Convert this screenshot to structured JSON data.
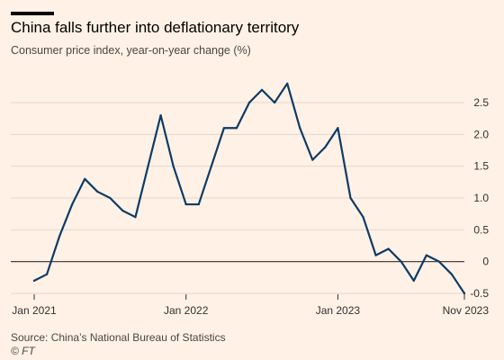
{
  "header": {
    "title": "China falls further into deflationary territory",
    "subtitle": "Consumer price index, year-on-year change (%)"
  },
  "footer": {
    "source": "Source: China’s National Bureau of Statistics",
    "credit": "© FT"
  },
  "colors": {
    "background": "#fff1e5",
    "line": "#0d3b66",
    "grid": "#e1d8cf",
    "zero_line": "#33302e",
    "text": "#33302e"
  },
  "chart_data": {
    "type": "line",
    "title": "China falls further into deflationary territory",
    "subtitle": "Consumer price index, year-on-year change (%)",
    "xlabel": "",
    "ylabel": "",
    "x": [
      "2021-01",
      "2021-02",
      "2021-03",
      "2021-04",
      "2021-05",
      "2021-06",
      "2021-07",
      "2021-08",
      "2021-09",
      "2021-10",
      "2021-11",
      "2021-12",
      "2022-01",
      "2022-02",
      "2022-03",
      "2022-04",
      "2022-05",
      "2022-06",
      "2022-07",
      "2022-08",
      "2022-09",
      "2022-10",
      "2022-11",
      "2022-12",
      "2023-01",
      "2023-02",
      "2023-03",
      "2023-04",
      "2023-05",
      "2023-06",
      "2023-07",
      "2023-08",
      "2023-09",
      "2023-10",
      "2023-11"
    ],
    "series": [
      {
        "values": [
          -0.3,
          -0.2,
          0.4,
          0.9,
          1.3,
          1.1,
          1.0,
          0.8,
          0.7,
          1.5,
          2.3,
          1.5,
          0.9,
          0.9,
          1.5,
          2.1,
          2.1,
          2.5,
          2.7,
          2.5,
          2.8,
          2.1,
          1.6,
          1.8,
          2.1,
          1.0,
          0.7,
          0.1,
          0.2,
          0.0,
          -0.3,
          0.1,
          0.0,
          -0.2,
          -0.5
        ]
      }
    ],
    "x_ticks": [
      "Jan 2021",
      "Jan 2022",
      "Jan 2023",
      "Nov 2023"
    ],
    "y_ticks": [
      "2.5",
      "2.0",
      "1.5",
      "1.0",
      "0.5",
      "0",
      "-0.5"
    ],
    "ylim": [
      -0.5,
      2.5
    ],
    "y_axis_position": "right",
    "grid": true
  }
}
